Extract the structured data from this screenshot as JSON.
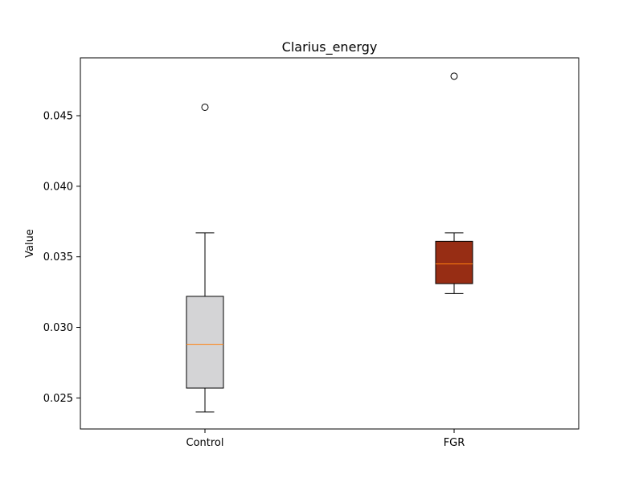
{
  "chart_data": {
    "type": "box",
    "title": "Clarius_energy",
    "xlabel": "",
    "ylabel": "Value",
    "ylim": [
      0.0228,
      0.0491
    ],
    "y_ticks": [
      0.025,
      0.03,
      0.035,
      0.04,
      0.045
    ],
    "y_tick_labels": [
      "0.025",
      "0.030",
      "0.035",
      "0.040",
      "0.045"
    ],
    "grid": false,
    "categories": [
      "Control",
      "FGR"
    ],
    "boxes": [
      {
        "category": "Control",
        "whisker_low": 0.024,
        "q1": 0.0257,
        "median": 0.0288,
        "q3": 0.0322,
        "whisker_high": 0.0367,
        "outliers": [
          0.0456
        ],
        "fill": "#d4d4d6"
      },
      {
        "category": "FGR",
        "whisker_low": 0.0324,
        "q1": 0.0331,
        "median": 0.0345,
        "q3": 0.0361,
        "whisker_high": 0.0367,
        "outliers": [
          0.0478
        ],
        "fill": "#972d14"
      }
    ],
    "median_color": "#ff7f0e",
    "line_color": "#000000"
  }
}
